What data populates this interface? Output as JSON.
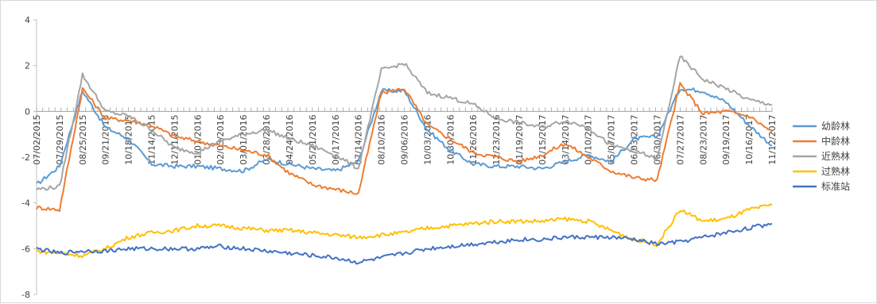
{
  "chart_data": {
    "type": "line",
    "title": "",
    "xlabel": "",
    "ylabel": "",
    "ylim": [
      -8,
      4
    ],
    "yticks": [
      4,
      2,
      0,
      -2,
      -4,
      -6,
      -8
    ],
    "grid": false,
    "legend_position": "right",
    "x": [
      "07/02/2015",
      "07/29/2015",
      "08/25/2015",
      "09/21/2015",
      "10/18/2015",
      "11/14/2015",
      "12/11/2015",
      "01/07/2016",
      "02/03/2016",
      "03/01/2016",
      "03/28/2016",
      "04/24/2016",
      "05/21/2016",
      "06/17/2016",
      "07/14/2016",
      "08/10/2016",
      "09/06/2016",
      "10/03/2016",
      "10/30/2016",
      "11/26/2016",
      "12/23/2016",
      "01/19/2017",
      "02/15/2017",
      "03/14/2017",
      "04/10/2017",
      "05/07/2017",
      "06/03/2017",
      "06/30/2017",
      "07/27/2017",
      "08/23/2017",
      "09/19/2017",
      "10/16/2017",
      "11/12/2017"
    ],
    "series": [
      {
        "name": "幼龄林",
        "color": "#5b9bd5",
        "values": [
          -3.2,
          -2.4,
          0.9,
          -0.7,
          -1.2,
          -2.3,
          -2.4,
          -2.4,
          -2.5,
          -2.6,
          -2.1,
          -2.3,
          -2.5,
          -2.6,
          -2.2,
          0.9,
          0.9,
          -0.8,
          -1.7,
          -2.3,
          -2.4,
          -2.4,
          -2.5,
          -2.2,
          -1.9,
          -2.2,
          -1.2,
          -1.1,
          1.0,
          0.9,
          0.4,
          -0.6,
          -1.5
        ]
      },
      {
        "name": "中龄林",
        "color": "#ed7d31",
        "values": [
          -4.2,
          -4.3,
          1.0,
          -0.3,
          -0.4,
          -0.6,
          -1.1,
          -1.3,
          -1.5,
          -1.7,
          -1.9,
          -2.7,
          -3.2,
          -3.4,
          -3.6,
          0.8,
          1.0,
          -0.6,
          -1.2,
          -1.8,
          -2.0,
          -2.2,
          -1.9,
          -1.4,
          -2.0,
          -2.6,
          -2.9,
          -3.0,
          1.2,
          -0.1,
          0.0,
          -0.2,
          -0.9
        ]
      },
      {
        "name": "近熟林",
        "color": "#a5a5a5",
        "values": [
          -3.4,
          -3.3,
          1.6,
          0.0,
          -0.2,
          -0.8,
          -1.6,
          -1.8,
          -1.3,
          -1.0,
          -0.8,
          -1.2,
          -1.5,
          -1.9,
          -2.5,
          1.8,
          2.1,
          0.8,
          0.6,
          0.3,
          -0.3,
          -0.5,
          -0.7,
          -0.4,
          -0.7,
          -1.5,
          -1.7,
          -2.1,
          2.4,
          1.4,
          1.0,
          0.5,
          0.3
        ]
      },
      {
        "name": "过熟林",
        "color": "#ffc000",
        "values": [
          -6.1,
          -6.2,
          -6.3,
          -6.0,
          -5.5,
          -5.3,
          -5.2,
          -5.0,
          -5.0,
          -5.1,
          -5.2,
          -5.2,
          -5.3,
          -5.4,
          -5.5,
          -5.4,
          -5.3,
          -5.1,
          -5.0,
          -4.9,
          -4.8,
          -4.8,
          -4.8,
          -4.7,
          -4.8,
          -5.2,
          -5.6,
          -5.8,
          -4.3,
          -4.8,
          -4.7,
          -4.3,
          -4.1
        ]
      },
      {
        "name": "标准站",
        "color": "#4472c4",
        "values": [
          -6.0,
          -6.2,
          -6.1,
          -6.1,
          -6.0,
          -6.0,
          -6.0,
          -6.0,
          -5.9,
          -6.0,
          -6.1,
          -6.2,
          -6.3,
          -6.4,
          -6.6,
          -6.4,
          -6.2,
          -6.0,
          -5.9,
          -5.8,
          -5.7,
          -5.6,
          -5.6,
          -5.5,
          -5.5,
          -5.5,
          -5.6,
          -5.8,
          -5.7,
          -5.5,
          -5.3,
          -5.1,
          -4.9
        ]
      }
    ]
  }
}
